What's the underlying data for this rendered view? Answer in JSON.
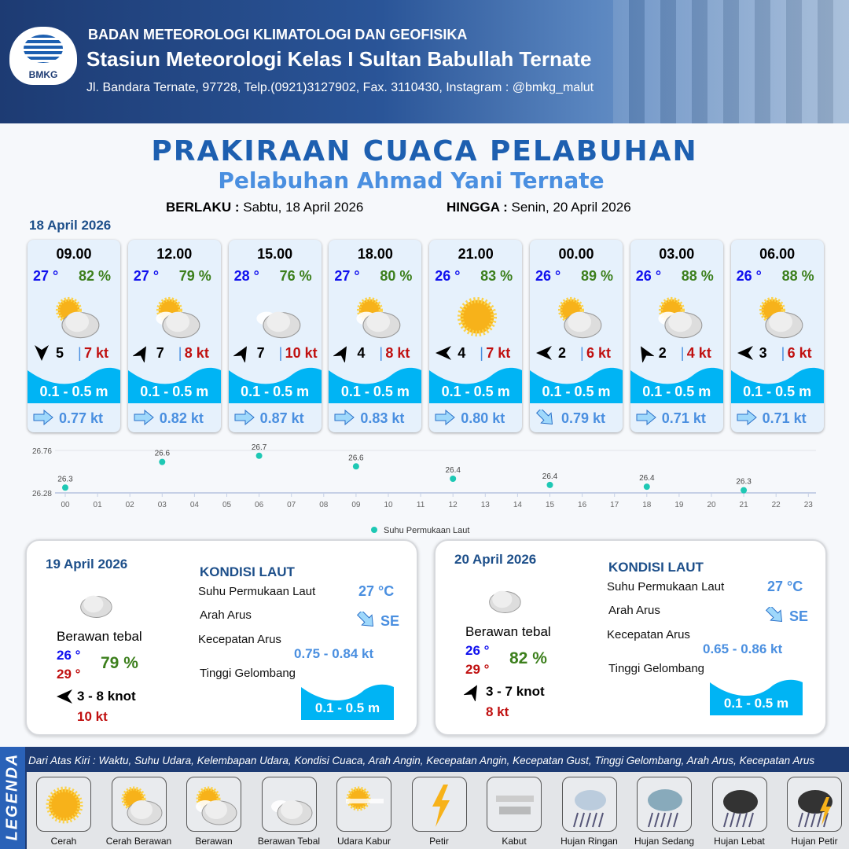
{
  "header": {
    "logo_text": "BMKG",
    "agency": "BADAN METEOROLOGI KLIMATOLOGI DAN GEOFISIKA",
    "station": "Stasiun Meteorologi Kelas I Sultan Babullah Ternate",
    "address": "Jl. Bandara Ternate, 97728, Telp.(0921)3127902, Fax. 3110430, Instagram : @bmkg_malut"
  },
  "title": "PRAKIRAAN CUACA PELABUHAN",
  "subtitle": "Pelabuhan Ahmad Yani Ternate",
  "validity": {
    "from_label": "BERLAKU :",
    "from": "Sabtu, 18 April 2026",
    "to_label": "HINGGA :",
    "to": "Senin, 20 April 2026"
  },
  "date_today": "18 April 2026",
  "forecasts": [
    {
      "time": "09.00",
      "temp": "27 °",
      "hum": "82 %",
      "weather": "cerah-berawan",
      "wind_dir_deg": 180,
      "wind": "5",
      "gust": "7 kt",
      "wave": "0.1 - 0.5 m",
      "current_dir": "E",
      "current": "0.77 kt"
    },
    {
      "time": "12.00",
      "temp": "27 °",
      "hum": "79 %",
      "weather": "berawan",
      "wind_dir_deg": 30,
      "wind": "7",
      "gust": "8 kt",
      "wave": "0.1 - 0.5 m",
      "current_dir": "E",
      "current": "0.82 kt"
    },
    {
      "time": "15.00",
      "temp": "28 °",
      "hum": "76 %",
      "weather": "berawan-tebal",
      "wind_dir_deg": 30,
      "wind": "7",
      "gust": "10 kt",
      "wave": "0.1 - 0.5 m",
      "current_dir": "E",
      "current": "0.87 kt"
    },
    {
      "time": "18.00",
      "temp": "27 °",
      "hum": "80 %",
      "weather": "berawan",
      "wind_dir_deg": 30,
      "wind": "4",
      "gust": "8 kt",
      "wave": "0.1 - 0.5 m",
      "current_dir": "E",
      "current": "0.83 kt"
    },
    {
      "time": "21.00",
      "temp": "26 °",
      "hum": "83 %",
      "weather": "cerah",
      "wind_dir_deg": -90,
      "wind": "4",
      "gust": "7 kt",
      "wave": "0.1 - 0.5 m",
      "current_dir": "E",
      "current": "0.80 kt"
    },
    {
      "time": "00.00",
      "temp": "26 °",
      "hum": "89 %",
      "weather": "cerah-berawan",
      "wind_dir_deg": -90,
      "wind": "2",
      "gust": "6 kt",
      "wave": "0.1 - 0.5 m",
      "current_dir": "SE",
      "current": "0.79 kt"
    },
    {
      "time": "03.00",
      "temp": "26 °",
      "hum": "88 %",
      "weather": "berawan",
      "wind_dir_deg": -30,
      "wind": "2",
      "gust": "4 kt",
      "wave": "0.1 - 0.5 m",
      "current_dir": "E",
      "current": "0.71 kt"
    },
    {
      "time": "06.00",
      "temp": "26 °",
      "hum": "88 %",
      "weather": "cerah-berawan",
      "wind_dir_deg": -90,
      "wind": "3",
      "gust": "6 kt",
      "wave": "0.1 - 0.5 m",
      "current_dir": "E",
      "current": "0.71 kt"
    }
  ],
  "chart_data": {
    "type": "scatter",
    "series": [
      {
        "name": "Suhu Permukaan Laut",
        "x": [
          "00",
          "03",
          "06",
          "09",
          "12",
          "15",
          "18",
          "21"
        ],
        "values": [
          26.34,
          26.63,
          26.7,
          26.58,
          26.44,
          26.37,
          26.35,
          26.31
        ],
        "labels": [
          "26.3",
          "26.6",
          "26.7",
          "26.6",
          "26.4",
          "26.4",
          "26.4",
          "26.3"
        ]
      }
    ],
    "x_ticks": [
      "00",
      "01",
      "02",
      "03",
      "04",
      "05",
      "06",
      "07",
      "08",
      "09",
      "10",
      "11",
      "12",
      "13",
      "14",
      "15",
      "16",
      "17",
      "18",
      "19",
      "20",
      "21",
      "22",
      "23"
    ],
    "y_ticks": [
      "26.28",
      "26.76"
    ],
    "ylim": [
      26.28,
      26.76
    ],
    "legend": "bottom",
    "color": "#1ec8b4"
  },
  "days": [
    {
      "date": "19 April 2026",
      "weather": "Berawan tebal",
      "tmin": "26 °",
      "tmax": "29 °",
      "hum": "79 %",
      "wind_dir_deg": -90,
      "wind": "3  - 8 knot",
      "gust": "10 kt",
      "kondisi_title": "KONDISI LAUT",
      "sst_label": "Suhu Permukaan Laut",
      "sst": "27 °C",
      "arah_label": "Arah Arus",
      "arah": "SE",
      "kec_label": "Kecepatan Arus",
      "kec": "0.75  - 0.84 kt",
      "gel_label": "Tinggi Gelombang",
      "gel": "0.1 - 0.5 m"
    },
    {
      "date": "20 April 2026",
      "weather": "Berawan tebal",
      "tmin": "26 °",
      "tmax": "29 °",
      "hum": "82 %",
      "wind_dir_deg": 30,
      "wind": "3  - 7 knot",
      "gust": "8 kt",
      "kondisi_title": "KONDISI LAUT",
      "sst_label": "Suhu Permukaan Laut",
      "sst": "27 °C",
      "arah_label": "Arah Arus",
      "arah": "SE",
      "kec_label": "Kecepatan Arus",
      "kec": "0.65  - 0.86 kt",
      "gel_label": "Tinggi Gelombang",
      "gel": "0.1 - 0.5 m"
    }
  ],
  "legend": {
    "title": "LEGENDA",
    "description": "Dari Atas Kiri : Waktu, Suhu Udara, Kelembapan Udara, Kondisi Cuaca, Arah Angin, Kecepatan Angin, Kecepatan Gust, Tinggi Gelombang, Arah Arus, Kecepatan Arus",
    "items": [
      {
        "label": "Cerah",
        "icon": "cerah"
      },
      {
        "label": "Cerah Berawan",
        "icon": "cerah-berawan"
      },
      {
        "label": "Berawan",
        "icon": "berawan"
      },
      {
        "label": "Berawan Tebal",
        "icon": "berawan-tebal"
      },
      {
        "label": "Udara Kabur",
        "icon": "udara-kabur"
      },
      {
        "label": "Petir",
        "icon": "petir"
      },
      {
        "label": "Kabut",
        "icon": "kabut"
      },
      {
        "label": "Hujan Ringan",
        "icon": "hujan-ringan"
      },
      {
        "label": "Hujan Sedang",
        "icon": "hujan-sedang"
      },
      {
        "label": "Hujan Lebat",
        "icon": "hujan-lebat"
      },
      {
        "label": "Hujan Petir",
        "icon": "hujan-petir"
      }
    ]
  },
  "colors": {
    "brand": "#1d3b73",
    "title": "#1d5fb0",
    "temp": "#1010ee",
    "humidity": "#3c7f1c",
    "gust": "#c01010",
    "wave": "#00b4f4",
    "current": "#4a8fe0"
  }
}
